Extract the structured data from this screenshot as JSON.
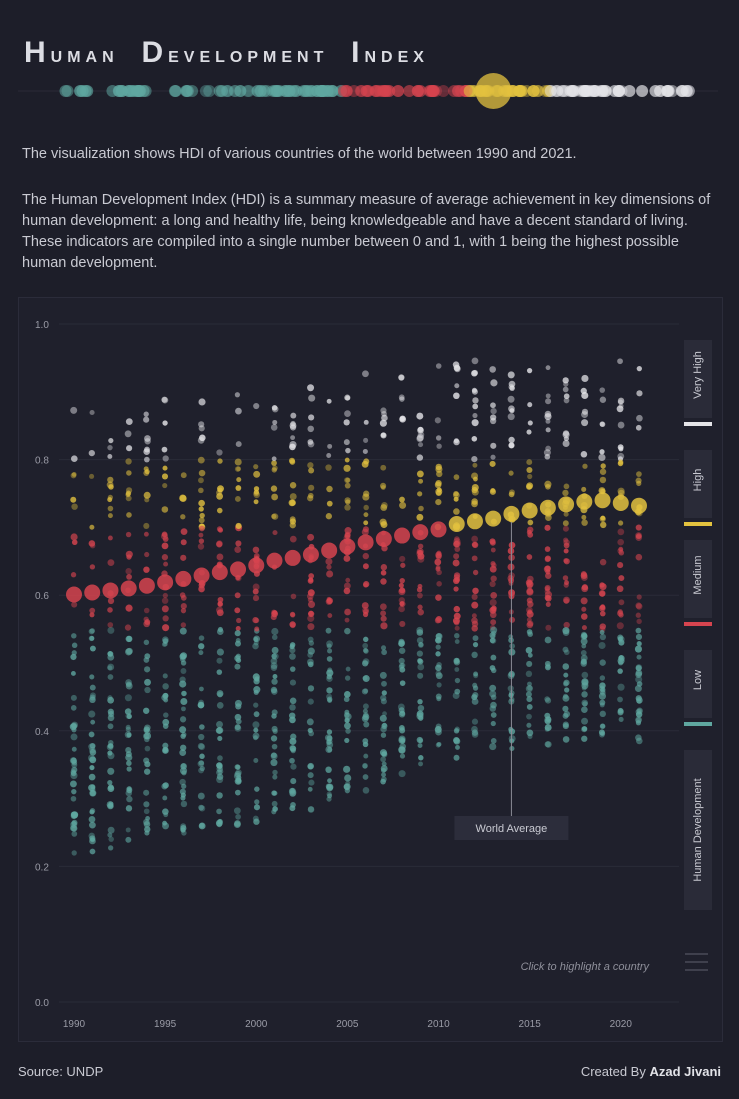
{
  "header": {
    "title_words": [
      {
        "initial": "H",
        "rest": "uman"
      },
      {
        "initial": "D",
        "rest": "evelopment"
      },
      {
        "initial": "I",
        "rest": "ndex"
      }
    ]
  },
  "intro": {
    "line1": "The visualization shows HDI of various countries of the world between 1990 and 2021.",
    "line2": "The Human Development Index (HDI) is a summary measure of average achievement in key dimensions of human development: a long and healthy life, being knowledgeable and have a decent standard of living. These indicators are compiled into a single number between 0 and 1, with 1 being the highest possible human development."
  },
  "legend": {
    "categories": [
      {
        "label": "Very High",
        "color": "#e4e4e8",
        "min": 0.8,
        "max": 1.0
      },
      {
        "label": "High",
        "color": "#e3c23f",
        "min": 0.7,
        "max": 0.8
      },
      {
        "label": "Medium",
        "color": "#d6444f",
        "min": 0.55,
        "max": 0.7
      },
      {
        "label": "Low",
        "color": "#5fa7a0",
        "min": 0.0,
        "max": 0.55
      }
    ],
    "title": "Human Development"
  },
  "hint": "Click to highlight a country",
  "menu_icon": "hamburger-icon",
  "footer": {
    "source": "Source: UNDP",
    "credit_prefix": "Created By ",
    "credit_name": "Azad Jivani"
  },
  "chart_data": {
    "type": "scatter",
    "title": "Human Development Index",
    "x_label": "",
    "y_label": "",
    "x_range": [
      1990,
      2021
    ],
    "y_range": [
      0,
      1
    ],
    "x_ticks": [
      1990,
      1995,
      2000,
      2005,
      2010,
      2015,
      2020
    ],
    "y_ticks": [
      "0.0",
      "0.2",
      "0.4",
      "0.6",
      "0.8",
      "1.0"
    ],
    "grid": true,
    "world_average_label": "World Average",
    "world_average_label_year": 2014,
    "world_average": {
      "years": [
        1990,
        1991,
        1992,
        1993,
        1994,
        1995,
        1996,
        1997,
        1998,
        1999,
        2000,
        2001,
        2002,
        2003,
        2004,
        2005,
        2006,
        2007,
        2008,
        2009,
        2010,
        2011,
        2012,
        2013,
        2014,
        2015,
        2016,
        2017,
        2018,
        2019,
        2020,
        2021
      ],
      "values": [
        0.601,
        0.604,
        0.607,
        0.61,
        0.614,
        0.619,
        0.624,
        0.629,
        0.634,
        0.638,
        0.644,
        0.651,
        0.655,
        0.66,
        0.666,
        0.672,
        0.678,
        0.683,
        0.688,
        0.693,
        0.697,
        0.705,
        0.709,
        0.713,
        0.72,
        0.725,
        0.729,
        0.734,
        0.738,
        0.74,
        0.736,
        0.732
      ]
    },
    "country_min": [
      0.218,
      0.219,
      0.224,
      0.231,
      0.235,
      0.24,
      0.245,
      0.25,
      0.253,
      0.256,
      0.259,
      0.266,
      0.273,
      0.28,
      0.288,
      0.3,
      0.309,
      0.318,
      0.329,
      0.34,
      0.351,
      0.358,
      0.363,
      0.365,
      0.369,
      0.373,
      0.378,
      0.382,
      0.385,
      0.39,
      0.39,
      0.385
    ],
    "country_max": [
      0.873,
      0.874,
      0.879,
      0.883,
      0.886,
      0.889,
      0.895,
      0.898,
      0.904,
      0.91,
      0.914,
      0.912,
      0.917,
      0.92,
      0.926,
      0.933,
      0.936,
      0.94,
      0.942,
      0.944,
      0.942,
      0.945,
      0.948,
      0.95,
      0.952,
      0.955,
      0.957,
      0.958,
      0.96,
      0.962,
      0.96,
      0.962
    ],
    "countries_per_year": 46
  }
}
